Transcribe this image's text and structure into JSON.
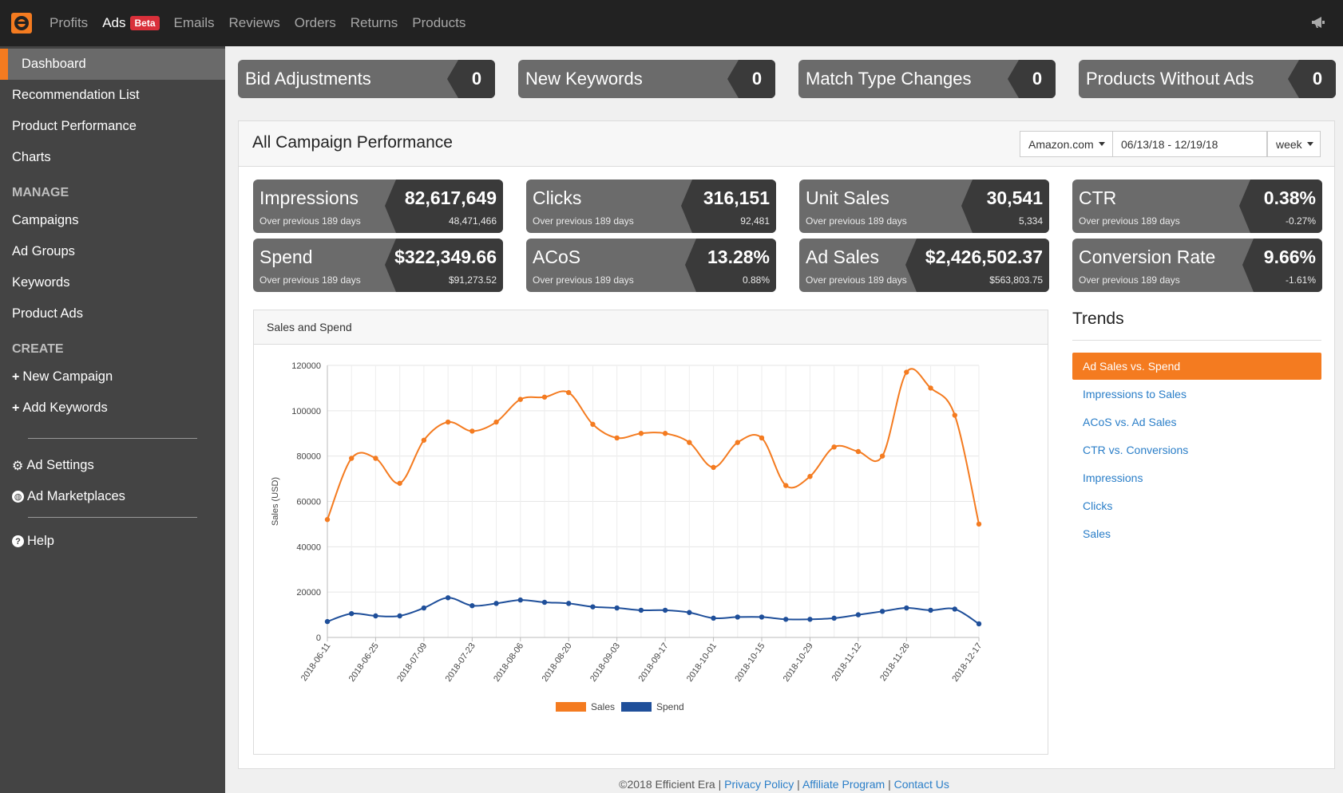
{
  "nav": {
    "logo_icon": "efficient-era-logo-icon",
    "items": [
      {
        "label": "Profits",
        "active": false
      },
      {
        "label": "Ads",
        "active": true,
        "badge": "Beta"
      },
      {
        "label": "Emails",
        "active": false
      },
      {
        "label": "Reviews",
        "active": false
      },
      {
        "label": "Orders",
        "active": false
      },
      {
        "label": "Returns",
        "active": false
      },
      {
        "label": "Products",
        "active": false
      }
    ],
    "announce_icon": "megaphone-icon"
  },
  "sidebar": {
    "dashboard": "Dashboard",
    "recommendation_list": "Recommendation List",
    "product_performance": "Product Performance",
    "charts": "Charts",
    "manage_head": "MANAGE",
    "campaigns": "Campaigns",
    "ad_groups": "Ad Groups",
    "keywords": "Keywords",
    "product_ads": "Product Ads",
    "create_head": "CREATE",
    "new_campaign": "New Campaign",
    "add_keywords": "Add Keywords",
    "ad_settings": "Ad Settings",
    "ad_marketplaces": "Ad Marketplaces",
    "help": "Help"
  },
  "summary": [
    {
      "label": "Bid Adjustments",
      "count": "0"
    },
    {
      "label": "New Keywords",
      "count": "0"
    },
    {
      "label": "Match Type Changes",
      "count": "0"
    },
    {
      "label": "Products Without Ads",
      "count": "0"
    }
  ],
  "panel": {
    "title": "All Campaign Performance",
    "marketplace": "Amazon.com",
    "date_range": "06/13/18 - 12/19/18",
    "period": "week"
  },
  "metrics": [
    {
      "name": "Impressions",
      "sub": "Over previous 189 days",
      "value": "82,617,649",
      "prev": "48,471,466"
    },
    {
      "name": "Clicks",
      "sub": "Over previous 189 days",
      "value": "316,151",
      "prev": "92,481"
    },
    {
      "name": "Unit Sales",
      "sub": "Over previous 189 days",
      "value": "30,541",
      "prev": "5,334"
    },
    {
      "name": "CTR",
      "sub": "Over previous 189 days",
      "value": "0.38%",
      "prev": "-0.27%"
    },
    {
      "name": "Spend",
      "sub": "Over previous 189 days",
      "value": "$322,349.66",
      "prev": "$91,273.52"
    },
    {
      "name": "ACoS",
      "sub": "Over previous 189 days",
      "value": "13.28%",
      "prev": "0.88%"
    },
    {
      "name": "Ad Sales",
      "sub": "Over previous 189 days",
      "value": "$2,426,502.37",
      "prev": "$563,803.75"
    },
    {
      "name": "Conversion Rate",
      "sub": "Over previous 189 days",
      "value": "9.66%",
      "prev": "-1.61%"
    }
  ],
  "chart_card": {
    "title": "Sales and Spend"
  },
  "chart_data": {
    "type": "line",
    "ylabel": "Sales (USD)",
    "ylim": [
      0,
      120000
    ],
    "yticks": [
      0,
      20000,
      40000,
      60000,
      80000,
      100000,
      120000
    ],
    "x_tick_labels": [
      "2018-06-11",
      "2018-06-25",
      "2018-07-09",
      "2018-07-23",
      "2018-08-06",
      "2018-08-20",
      "2018-09-03",
      "2018-09-17",
      "2018-10-01",
      "2018-10-15",
      "2018-10-29",
      "2018-11-12",
      "2018-11-26",
      "2018-12-17"
    ],
    "x": [
      "2018-06-11",
      "2018-06-18",
      "2018-06-25",
      "2018-07-02",
      "2018-07-09",
      "2018-07-16",
      "2018-07-23",
      "2018-07-30",
      "2018-08-06",
      "2018-08-13",
      "2018-08-20",
      "2018-08-27",
      "2018-09-03",
      "2018-09-10",
      "2018-09-17",
      "2018-09-24",
      "2018-10-01",
      "2018-10-08",
      "2018-10-15",
      "2018-10-22",
      "2018-10-29",
      "2018-11-05",
      "2018-11-12",
      "2018-11-19",
      "2018-11-26",
      "2018-12-03",
      "2018-12-10",
      "2018-12-17"
    ],
    "series": [
      {
        "name": "Sales",
        "color": "#f47b20",
        "values": [
          52000,
          79000,
          79000,
          68000,
          87000,
          95000,
          91000,
          95000,
          105000,
          106000,
          108000,
          94000,
          88000,
          90000,
          90000,
          86000,
          75000,
          86000,
          88000,
          67000,
          71000,
          84000,
          82000,
          80000,
          117000,
          110000,
          98000,
          50000
        ]
      },
      {
        "name": "Spend",
        "color": "#1f4f9a",
        "values": [
          7000,
          10500,
          9500,
          9500,
          13000,
          17500,
          14000,
          15000,
          16500,
          15500,
          15000,
          13500,
          13000,
          12000,
          12000,
          11000,
          8500,
          9000,
          9000,
          8000,
          8000,
          8500,
          10000,
          11500,
          13000,
          12000,
          12500,
          6000
        ]
      }
    ],
    "grid": true,
    "legend": "bottom"
  },
  "trends": {
    "title": "Trends",
    "items": [
      {
        "label": "Ad Sales vs. Spend",
        "active": true
      },
      {
        "label": "Impressions to Sales",
        "active": false
      },
      {
        "label": "ACoS vs. Ad Sales",
        "active": false
      },
      {
        "label": "CTR vs. Conversions",
        "active": false
      },
      {
        "label": "Impressions",
        "active": false
      },
      {
        "label": "Clicks",
        "active": false
      },
      {
        "label": "Sales",
        "active": false
      }
    ]
  },
  "footer": {
    "copyright": "©2018 Efficient Era",
    "sep": "|",
    "privacy": "Privacy Policy",
    "affiliate": "Affiliate Program",
    "contact": "Contact Us"
  }
}
